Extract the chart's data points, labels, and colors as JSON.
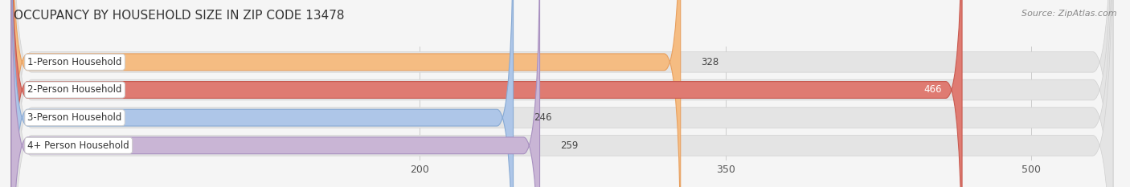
{
  "title": "OCCUPANCY BY HOUSEHOLD SIZE IN ZIP CODE 13478",
  "source": "Source: ZipAtlas.com",
  "categories": [
    "1-Person Household",
    "2-Person Household",
    "3-Person Household",
    "4+ Person Household"
  ],
  "values": [
    328,
    466,
    246,
    259
  ],
  "bar_colors": [
    "#f5bc82",
    "#df7b72",
    "#aec6e8",
    "#c9b5d5"
  ],
  "bar_edge_colors": [
    "#e8a060",
    "#c85a50",
    "#88aad4",
    "#a890c0"
  ],
  "label_colors": [
    "#333333",
    "#ffffff",
    "#333333",
    "#333333"
  ],
  "xlim": [
    0,
    540
  ],
  "xmin": 0,
  "xticks": [
    200,
    350,
    500
  ],
  "background_color": "#f5f5f5",
  "bar_background_color": "#e4e4e4",
  "bar_background_edge": "#d0d0d0",
  "title_fontsize": 11,
  "source_fontsize": 8,
  "label_fontsize": 8.5,
  "value_fontsize": 8.5,
  "tick_fontsize": 9
}
